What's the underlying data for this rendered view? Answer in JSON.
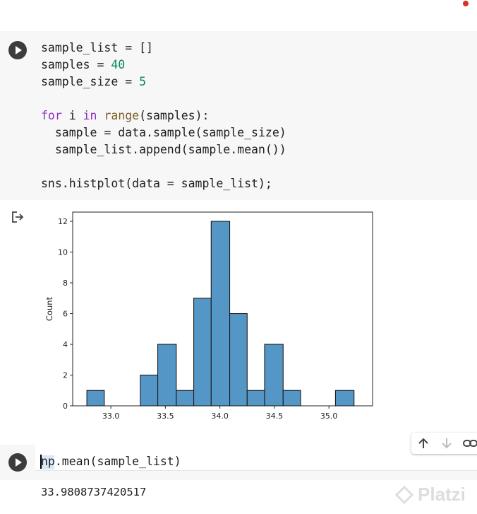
{
  "cells": [
    {
      "code_lines": [
        [
          {
            "t": "sample_list = []",
            "c": ""
          }
        ],
        [
          {
            "t": "samples = ",
            "c": ""
          },
          {
            "t": "40",
            "c": "num"
          }
        ],
        [
          {
            "t": "sample_size = ",
            "c": ""
          },
          {
            "t": "5",
            "c": "num"
          }
        ],
        [
          {
            "t": "",
            "c": ""
          }
        ],
        [
          {
            "t": "for",
            "c": "kw"
          },
          {
            "t": " i ",
            "c": ""
          },
          {
            "t": "in",
            "c": "kw"
          },
          {
            "t": " ",
            "c": ""
          },
          {
            "t": "range",
            "c": "fn"
          },
          {
            "t": "(samples):",
            "c": ""
          }
        ],
        [
          {
            "t": "  sample = data.sample(sample_size)",
            "c": ""
          }
        ],
        [
          {
            "t": "  sample_list.append(sample.mean())",
            "c": ""
          }
        ],
        [
          {
            "t": "",
            "c": ""
          }
        ],
        [
          {
            "t": "sns.histplot(data = sample_list);",
            "c": ""
          }
        ]
      ]
    },
    {
      "code": "np.mean(sample_list)",
      "output": "33.9808737420517"
    }
  ],
  "chart_data": {
    "type": "bar",
    "xlabel": "",
    "ylabel": "Count",
    "xlim": [
      32.65,
      35.4
    ],
    "ylim": [
      0,
      12.6
    ],
    "x_ticks": [
      "33.0",
      "33.5",
      "34.0",
      "34.5",
      "35.0"
    ],
    "x_tick_values": [
      33.0,
      33.5,
      34.0,
      34.5,
      35.0
    ],
    "y_ticks": [
      "0",
      "2",
      "4",
      "6",
      "8",
      "10",
      "12"
    ],
    "y_tick_values": [
      0,
      2,
      4,
      6,
      8,
      10,
      12
    ],
    "bins": [
      {
        "start": 32.78,
        "end": 32.94,
        "count": 1
      },
      {
        "start": 33.27,
        "end": 33.43,
        "count": 2
      },
      {
        "start": 33.43,
        "end": 33.6,
        "count": 4
      },
      {
        "start": 33.6,
        "end": 33.76,
        "count": 1
      },
      {
        "start": 33.76,
        "end": 33.92,
        "count": 7
      },
      {
        "start": 33.92,
        "end": 34.09,
        "count": 12
      },
      {
        "start": 34.09,
        "end": 34.25,
        "count": 6
      },
      {
        "start": 34.25,
        "end": 34.41,
        "count": 1
      },
      {
        "start": 34.41,
        "end": 34.58,
        "count": 4
      },
      {
        "start": 34.58,
        "end": 34.74,
        "count": 1
      },
      {
        "start": 35.06,
        "end": 35.23,
        "count": 1
      }
    ],
    "bar_color": "#5497c7",
    "edge_color": "#1a1a1a"
  },
  "watermark": {
    "text": "Platzi"
  }
}
